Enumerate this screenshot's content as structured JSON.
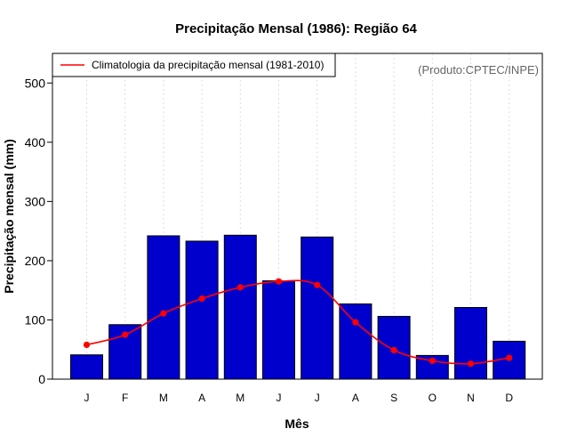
{
  "chart_data": {
    "type": "bar",
    "title": "Precipitação Mensal (1986): Região 64",
    "xlabel": "Mês",
    "ylabel": "Precipitação mensal (mm)",
    "ylim": [
      0,
      550
    ],
    "yticks": [
      0,
      100,
      200,
      300,
      400,
      500
    ],
    "grid": "vertical-dotted",
    "categories": [
      "J",
      "F",
      "M",
      "A",
      "M",
      "J",
      "J",
      "A",
      "S",
      "O",
      "N",
      "D"
    ],
    "series": [
      {
        "name": "Precipitação mensal (1986)",
        "kind": "bar",
        "color": "#0000cc",
        "values": [
          41,
          92,
          242,
          233,
          243,
          166,
          240,
          127,
          106,
          40,
          121,
          64
        ]
      },
      {
        "name": "Climatologia da precipitação mensal (1981-2010)",
        "kind": "line",
        "color": "#ff0000",
        "values": [
          58,
          75,
          111,
          136,
          155,
          165,
          159,
          96,
          49,
          31,
          26,
          36
        ]
      }
    ],
    "legend": {
      "position": "top-left",
      "entry": "Climatologia da precipitação mensal (1981-2010)"
    },
    "annotation": "(Produto:CPTEC/INPE)"
  }
}
